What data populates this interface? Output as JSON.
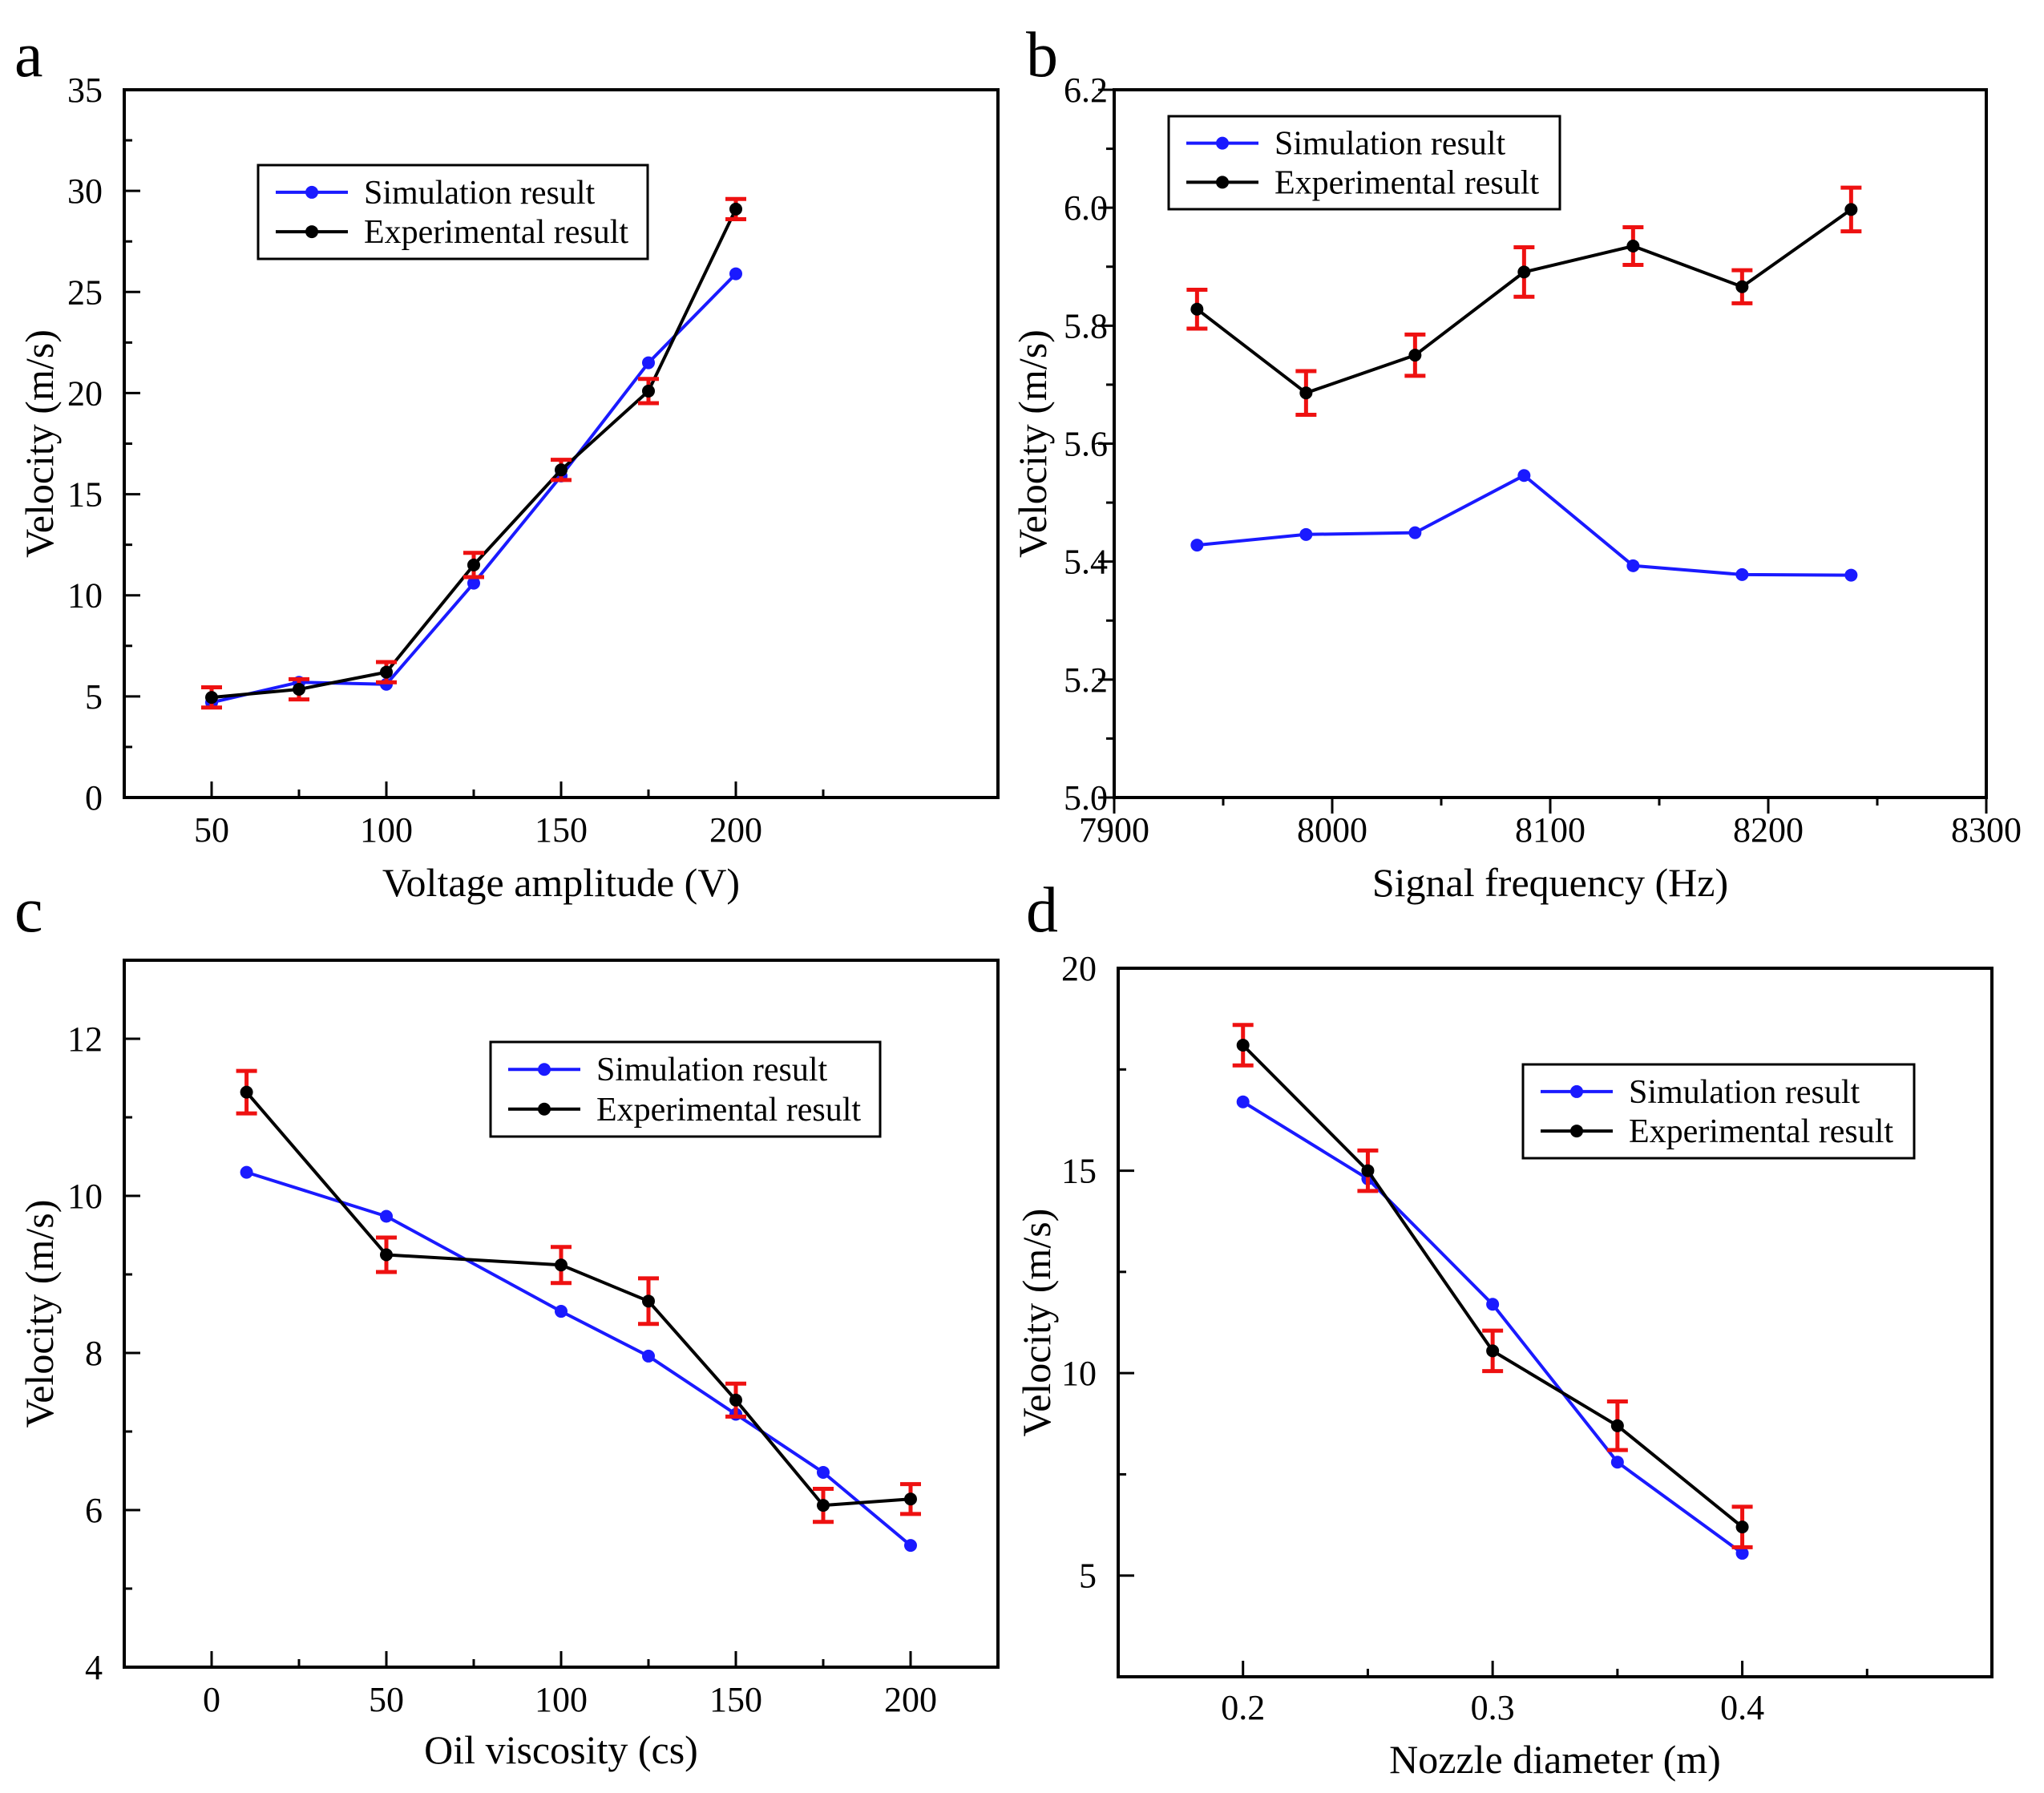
{
  "colors": {
    "simulation": "#1a1aff",
    "experimental": "#000000",
    "error_bar": "#ee1111",
    "axes": "#000000"
  },
  "chart_data": [
    {
      "panel": "a",
      "type": "line",
      "xlabel": "Voltage amplitude (V)",
      "ylabel": "Velocity (m/s)",
      "xlim": [
        25,
        275
      ],
      "ylim": [
        0,
        35
      ],
      "xticks": [
        50,
        100,
        150,
        200
      ],
      "xtick_labels": [
        "50",
        "100",
        "150",
        "200"
      ],
      "yticks": [
        0,
        5,
        10,
        15,
        20,
        25,
        30,
        35
      ],
      "ytick_labels": [
        "0",
        "5",
        "10",
        "15",
        "20",
        "25",
        "30",
        "35"
      ],
      "legend_position": "upper-left",
      "series": [
        {
          "name": "Simulation result",
          "x": [
            50,
            75,
            100,
            125,
            150,
            175,
            200
          ],
          "values": [
            4.7,
            5.7,
            5.6,
            10.6,
            15.9,
            21.5,
            25.9
          ]
        },
        {
          "name": "Experimental result",
          "x": [
            50,
            75,
            100,
            125,
            150,
            175,
            200
          ],
          "values": [
            4.95,
            5.35,
            6.2,
            11.5,
            16.2,
            20.1,
            29.1
          ],
          "errors": [
            0.5,
            0.5,
            0.5,
            0.6,
            0.5,
            0.6,
            0.5
          ]
        }
      ]
    },
    {
      "panel": "b",
      "type": "line",
      "xlabel": "Signal frequency (Hz)",
      "ylabel": "Velocity (m/s)",
      "xlim": [
        7900,
        8300
      ],
      "ylim": [
        5.0,
        6.2
      ],
      "xticks": [
        7900,
        8000,
        8100,
        8200,
        8300
      ],
      "xtick_labels": [
        "7900",
        "8000",
        "8100",
        "8200",
        "8300"
      ],
      "yticks": [
        5.0,
        5.2,
        5.4,
        5.6,
        5.8,
        6.0,
        6.2
      ],
      "ytick_labels": [
        "5.0",
        "5.2",
        "5.4",
        "5.6",
        "5.8",
        "6.0",
        "6.2"
      ],
      "legend_position": "upper-left",
      "series": [
        {
          "name": "Simulation result",
          "x": [
            7938,
            7988,
            8038,
            8088,
            8138,
            8188,
            8238
          ],
          "values": [
            5.428,
            5.446,
            5.449,
            5.546,
            5.393,
            5.378,
            5.377
          ]
        },
        {
          "name": "Experimental result",
          "x": [
            7938,
            7988,
            8038,
            8088,
            8138,
            8188,
            8238
          ],
          "values": [
            5.828,
            5.686,
            5.75,
            5.891,
            5.935,
            5.866,
            5.997
          ],
          "errors": [
            0.033,
            0.037,
            0.035,
            0.042,
            0.032,
            0.028,
            0.037
          ]
        }
      ]
    },
    {
      "panel": "c",
      "type": "line",
      "xlabel": "Oil viscosity (cs)",
      "ylabel": "Velocity (m/s)",
      "xlim": [
        -25,
        225
      ],
      "ylim": [
        4,
        13
      ],
      "xticks": [
        0,
        50,
        100,
        150,
        200
      ],
      "xtick_labels": [
        "0",
        "50",
        "100",
        "150",
        "200"
      ],
      "yticks": [
        4,
        6,
        8,
        10,
        12
      ],
      "ytick_labels": [
        "4",
        "6",
        "8",
        "10",
        "12"
      ],
      "legend_position": "upper-right",
      "series": [
        {
          "name": "Simulation result",
          "x": [
            10,
            50,
            100,
            125,
            150,
            175,
            200
          ],
          "values": [
            10.3,
            9.74,
            8.53,
            7.96,
            7.22,
            6.48,
            5.55
          ]
        },
        {
          "name": "Experimental result",
          "x": [
            10,
            50,
            100,
            125,
            150,
            175,
            200
          ],
          "values": [
            11.32,
            9.25,
            9.12,
            8.66,
            7.4,
            6.06,
            6.14
          ],
          "errors": [
            0.27,
            0.22,
            0.23,
            0.29,
            0.21,
            0.21,
            0.19
          ]
        }
      ]
    },
    {
      "panel": "d",
      "type": "line",
      "xlabel": "Nozzle diameter (m)",
      "ylabel": "Velocity (m/s)",
      "xlim": [
        0.15,
        0.5
      ],
      "ylim": [
        2.5,
        20
      ],
      "xticks": [
        0.2,
        0.3,
        0.4
      ],
      "xtick_labels": [
        "0.2",
        "0.3",
        "0.4"
      ],
      "yticks": [
        5,
        10,
        15,
        20
      ],
      "ytick_labels": [
        "5",
        "10",
        "15",
        "20"
      ],
      "legend_position": "upper-right",
      "series": [
        {
          "name": "Simulation result",
          "x": [
            0.2,
            0.25,
            0.3,
            0.35,
            0.4
          ],
          "values": [
            16.7,
            14.8,
            11.7,
            7.8,
            5.55
          ]
        },
        {
          "name": "Experimental result",
          "x": [
            0.2,
            0.25,
            0.3,
            0.35,
            0.4
          ],
          "values": [
            18.1,
            15.0,
            10.55,
            8.7,
            6.2
          ],
          "errors": [
            0.5,
            0.5,
            0.5,
            0.6,
            0.5
          ]
        }
      ]
    }
  ]
}
